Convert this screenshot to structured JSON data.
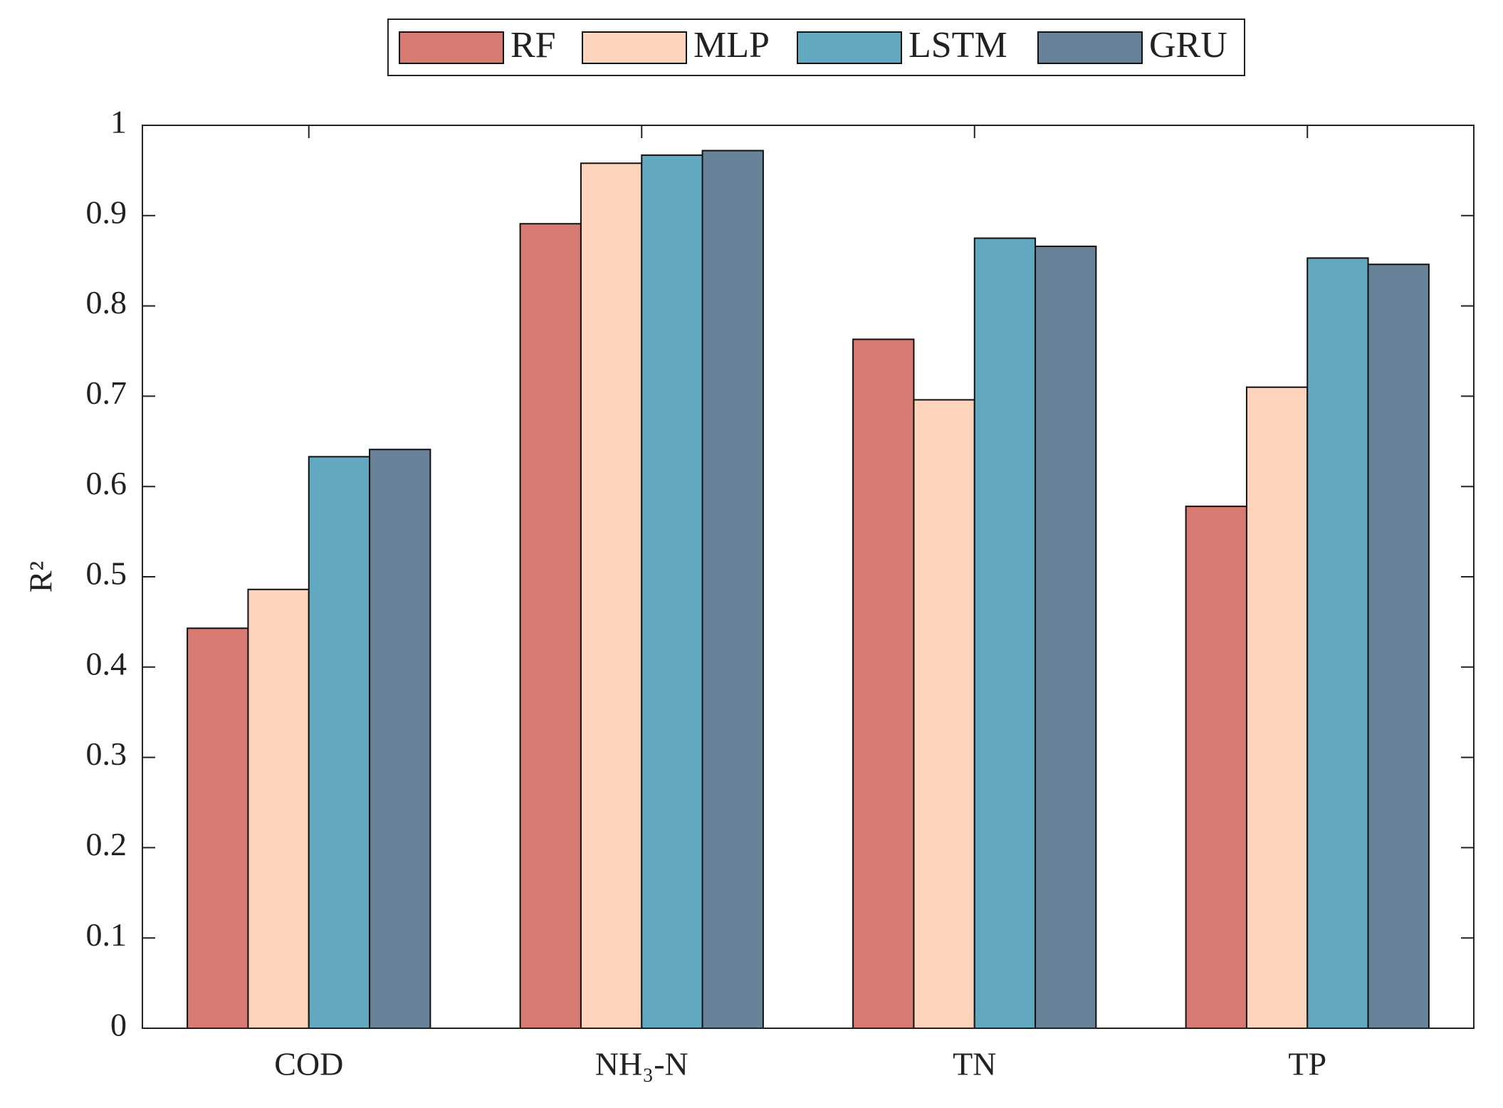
{
  "chart_data": {
    "type": "bar",
    "y_label": "R²",
    "categories": [
      "COD",
      "NH₃-N",
      "TN",
      "TP"
    ],
    "series": [
      {
        "name": "RF",
        "color": "#d67a72",
        "values": [
          0.443,
          0.891,
          0.763,
          0.578
        ]
      },
      {
        "name": "MLP",
        "color": "#fdd3bb",
        "values": [
          0.486,
          0.958,
          0.696,
          0.71
        ]
      },
      {
        "name": "LSTM",
        "color": "#62a8c1",
        "values": [
          0.633,
          0.967,
          0.875,
          0.853
        ]
      },
      {
        "name": "GRU",
        "color": "#688399",
        "values": [
          0.641,
          0.972,
          0.866,
          0.846
        ]
      }
    ],
    "ylim": [
      0,
      1
    ],
    "yticks": [
      0,
      0.1,
      0.2,
      0.3,
      0.4,
      0.5,
      0.6,
      0.7,
      0.8,
      0.9,
      1
    ],
    "legend": "top"
  }
}
